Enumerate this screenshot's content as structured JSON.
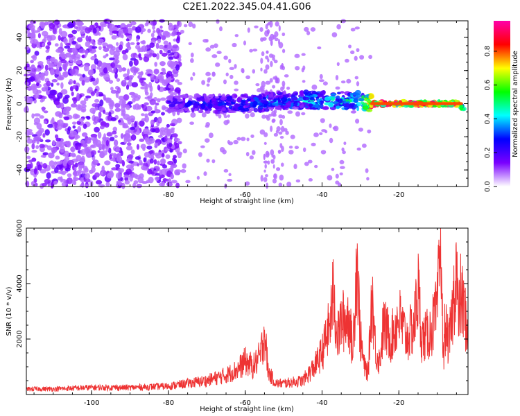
{
  "figure": {
    "title": "C2E1.2022.345.04.41.G06"
  },
  "chart_data": [
    {
      "type": "heatmap",
      "xlabel": "Height of straight line (km)",
      "ylabel": "Frequency (Hz)",
      "xlim": [
        -117,
        -2
      ],
      "ylim": [
        -50,
        50
      ],
      "xticks": [
        -100,
        -80,
        -60,
        -40,
        -20
      ],
      "yticks": [
        -40,
        -20,
        0,
        20,
        40
      ],
      "colorbar": {
        "label": "Normalized spectral amplitude",
        "range": [
          0,
          0.98
        ],
        "ticks": [
          0.0,
          0.2,
          0.4,
          0.6,
          0.8
        ],
        "colors": [
          "#ffffff",
          "#7a00ff",
          "#0000ff",
          "#00ffff",
          "#00ff00",
          "#ffff00",
          "#ff0000",
          "#ff00aa"
        ]
      },
      "signal_band": [
        {
          "x": -80,
          "y": 0,
          "amp": 0.25
        },
        {
          "x": -70,
          "y": 0,
          "amp": 0.3
        },
        {
          "x": -60,
          "y": 0,
          "amp": 0.35
        },
        {
          "x": -50,
          "y": 2,
          "amp": 0.4
        },
        {
          "x": -40,
          "y": 2,
          "amp": 0.45
        },
        {
          "x": -30,
          "y": 2,
          "amp": 0.5
        },
        {
          "x": -27,
          "y": 0,
          "amp": 0.95
        },
        {
          "x": -5,
          "y": 0,
          "amp": 0.95
        },
        {
          "x": -3,
          "y": -3,
          "amp": 0.5
        }
      ]
    },
    {
      "type": "line",
      "xlabel": "Height of straight line (km)",
      "ylabel": "SNR (10 * v/v)",
      "xlim": [
        -117,
        -2
      ],
      "ylim": [
        0,
        6000
      ],
      "xticks": [
        -100,
        -80,
        -60,
        -40,
        -20
      ],
      "yticks": [
        2000,
        4000,
        6000
      ],
      "series": [
        {
          "color": "#ee3333",
          "x": [
            -117,
            -110,
            -100,
            -90,
            -80,
            -75,
            -70,
            -65,
            -62,
            -60,
            -58,
            -56,
            -55,
            -54,
            -53,
            -52,
            -50,
            -45,
            -42,
            -40,
            -38,
            -37,
            -36,
            -35,
            -33,
            -32,
            -31,
            -30,
            -29,
            -28,
            -27,
            -26,
            -25,
            -24,
            -22,
            -20,
            -18,
            -16,
            -15,
            -14,
            -12,
            -10,
            -9,
            -8.5,
            -8,
            -7,
            -6,
            -5,
            -4.5,
            -4,
            -3,
            -2
          ],
          "y": [
            200,
            200,
            250,
            250,
            300,
            400,
            500,
            700,
            900,
            1200,
            1000,
            1400,
            2300,
            800,
            600,
            400,
            400,
            500,
            1000,
            1500,
            2500,
            3700,
            2000,
            2600,
            2800,
            1500,
            5000,
            2000,
            1000,
            800,
            3700,
            1500,
            1200,
            2500,
            2000,
            2800,
            2000,
            2500,
            3800,
            2000,
            2200,
            3000,
            6000,
            1000,
            2500,
            1800,
            3000,
            4800,
            2500,
            3600,
            3000,
            2200
          ]
        }
      ]
    }
  ]
}
